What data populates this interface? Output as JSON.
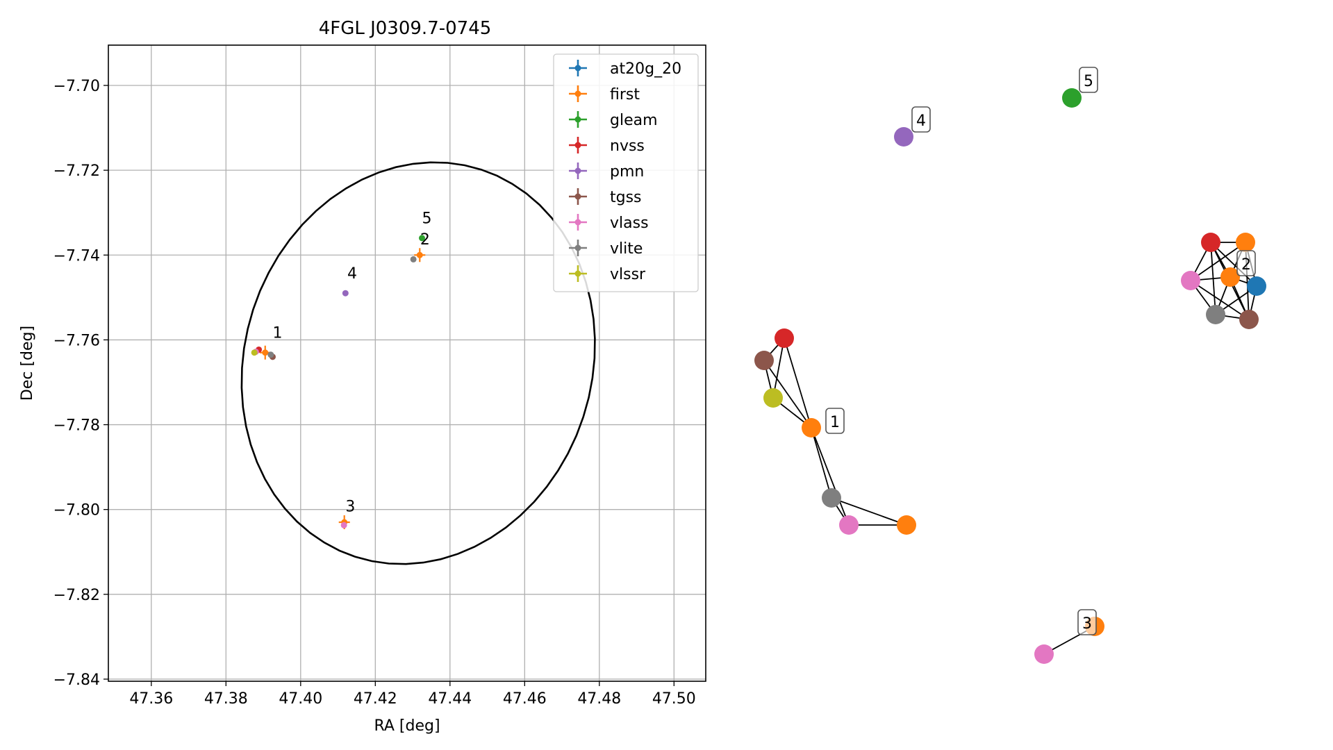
{
  "colors": {
    "at20g_20": "#1f77b4",
    "first": "#ff7f0e",
    "gleam": "#2ca02c",
    "nvss": "#d62728",
    "pmn": "#9467bd",
    "tgss": "#8c564b",
    "vlass": "#e377c2",
    "vlite": "#7f7f7f",
    "vlssr": "#bcbd22"
  },
  "chart_data": [
    {
      "type": "scatter",
      "title": "4FGL J0309.7-0745",
      "xlabel": "RA [deg]",
      "ylabel": "Dec [deg]",
      "xlim": [
        47.3485,
        47.5085
      ],
      "ylim": [
        -7.8405,
        -7.6905
      ],
      "xticks": [
        47.36,
        47.38,
        47.4,
        47.42,
        47.44,
        47.46,
        47.48,
        47.5
      ],
      "xtick_labels": [
        "47.36",
        "47.38",
        "47.40",
        "47.42",
        "47.44",
        "47.46",
        "47.48",
        "47.50"
      ],
      "yticks": [
        -7.84,
        -7.82,
        -7.8,
        -7.78,
        -7.76,
        -7.74,
        -7.72,
        -7.7
      ],
      "ytick_labels": [
        "−7.84",
        "−7.82",
        "−7.80",
        "−7.78",
        "−7.76",
        "−7.74",
        "−7.72",
        "−7.70"
      ],
      "grid": true,
      "legend_position": "top-right",
      "legend": [
        "at20g_20",
        "first",
        "gleam",
        "nvss",
        "pmn",
        "tgss",
        "vlass",
        "vlite",
        "vlssr"
      ],
      "ellipse": {
        "center": [
          47.4315,
          -7.7655
        ],
        "half_width_ra": 0.0465,
        "half_height_dec": 0.048,
        "tilt_deg": 18
      },
      "series": [
        {
          "name": "first",
          "points": [
            [
              47.3905,
              -7.763
            ],
            [
              47.4319,
              -7.74
            ],
            [
              47.4117,
              -7.803
            ]
          ]
        },
        {
          "name": "gleam",
          "points": [
            [
              47.4325,
              -7.736
            ]
          ]
        },
        {
          "name": "nvss",
          "points": [
            [
              47.3888,
              -7.7623
            ]
          ]
        },
        {
          "name": "pmn",
          "points": [
            [
              47.412,
              -7.749
            ]
          ]
        },
        {
          "name": "tgss",
          "points": [
            [
              47.3925,
              -7.764
            ]
          ]
        },
        {
          "name": "vlass",
          "points": [
            [
              47.388,
              -7.7628
            ],
            [
              47.4116,
              -7.8037
            ]
          ]
        },
        {
          "name": "vlite",
          "points": [
            [
              47.392,
              -7.7635
            ],
            [
              47.4302,
              -7.741
            ]
          ]
        },
        {
          "name": "vlssr",
          "points": [
            [
              47.3876,
              -7.763
            ]
          ]
        }
      ],
      "annotations": [
        {
          "text": "1",
          "at": [
            47.3925,
            -7.7595
          ]
        },
        {
          "text": "2",
          "at": [
            47.432,
            -7.7375
          ]
        },
        {
          "text": "3",
          "at": [
            47.412,
            -7.8005
          ]
        },
        {
          "text": "4",
          "at": [
            47.4125,
            -7.7455
          ]
        },
        {
          "text": "5",
          "at": [
            47.4325,
            -7.7325
          ]
        }
      ]
    },
    {
      "type": "network",
      "clusters": [
        {
          "label": "1",
          "nodes": [
            {
              "id": "nvss",
              "catalog": "nvss"
            },
            {
              "id": "tgss",
              "catalog": "tgss"
            },
            {
              "id": "vlssr",
              "catalog": "vlssr"
            },
            {
              "id": "first_a",
              "catalog": "first"
            },
            {
              "id": "vlite",
              "catalog": "vlite"
            },
            {
              "id": "vlass",
              "catalog": "vlass"
            },
            {
              "id": "first_b",
              "catalog": "first"
            }
          ],
          "edges": [
            [
              "nvss",
              "tgss"
            ],
            [
              "nvss",
              "first_a"
            ],
            [
              "nvss",
              "vlssr"
            ],
            [
              "tgss",
              "vlssr"
            ],
            [
              "tgss",
              "first_a"
            ],
            [
              "vlssr",
              "first_a"
            ],
            [
              "first_a",
              "vlite"
            ],
            [
              "first_a",
              "vlass"
            ],
            [
              "vlite",
              "vlass"
            ],
            [
              "vlite",
              "first_b"
            ],
            [
              "vlass",
              "first_b"
            ]
          ]
        },
        {
          "label": "2",
          "nodes": [
            {
              "id": "nvss",
              "catalog": "nvss"
            },
            {
              "id": "first_a",
              "catalog": "first"
            },
            {
              "id": "vlass",
              "catalog": "vlass"
            },
            {
              "id": "first_b",
              "catalog": "first"
            },
            {
              "id": "at20g_20",
              "catalog": "at20g_20"
            },
            {
              "id": "vlite",
              "catalog": "vlite"
            },
            {
              "id": "tgss",
              "catalog": "tgss"
            }
          ],
          "edges": [
            [
              "nvss",
              "first_a"
            ],
            [
              "nvss",
              "vlass"
            ],
            [
              "nvss",
              "first_b"
            ],
            [
              "nvss",
              "at20g_20"
            ],
            [
              "nvss",
              "vlite"
            ],
            [
              "nvss",
              "tgss"
            ],
            [
              "first_a",
              "first_b"
            ],
            [
              "first_a",
              "at20g_20"
            ],
            [
              "first_a",
              "tgss"
            ],
            [
              "first_a",
              "vlass"
            ],
            [
              "vlass",
              "first_b"
            ],
            [
              "vlass",
              "vlite"
            ],
            [
              "vlass",
              "tgss"
            ],
            [
              "first_b",
              "at20g_20"
            ],
            [
              "first_b",
              "vlite"
            ],
            [
              "first_b",
              "tgss"
            ],
            [
              "at20g_20",
              "tgss"
            ],
            [
              "at20g_20",
              "vlite"
            ],
            [
              "vlite",
              "tgss"
            ]
          ]
        },
        {
          "label": "3",
          "nodes": [
            {
              "id": "vlass",
              "catalog": "vlass"
            },
            {
              "id": "first",
              "catalog": "first"
            }
          ],
          "edges": [
            [
              "vlass",
              "first"
            ]
          ]
        },
        {
          "label": "4",
          "nodes": [
            {
              "id": "pmn",
              "catalog": "pmn"
            }
          ],
          "edges": []
        },
        {
          "label": "5",
          "nodes": [
            {
              "id": "gleam",
              "catalog": "gleam"
            }
          ],
          "edges": []
        }
      ]
    }
  ]
}
